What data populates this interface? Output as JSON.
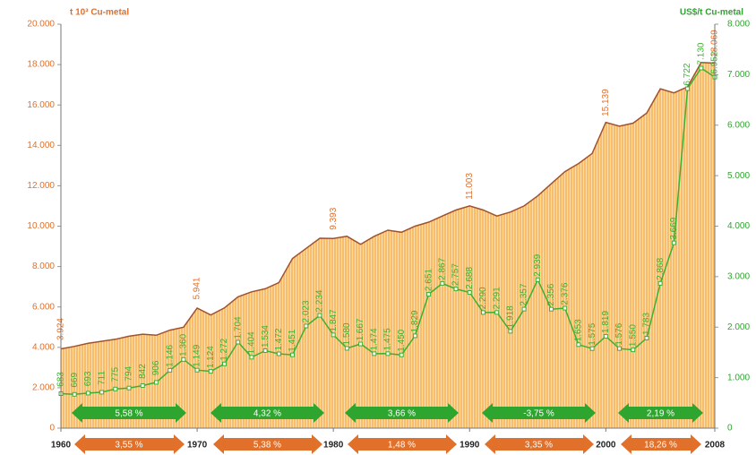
{
  "chart_data": {
    "type": "combo",
    "y_label": "t 10³ Cu-metal",
    "y2_label": "US$/t Cu-metal",
    "x": [
      1960,
      1961,
      1962,
      1963,
      1964,
      1965,
      1966,
      1967,
      1968,
      1969,
      1970,
      1971,
      1972,
      1973,
      1974,
      1975,
      1976,
      1977,
      1978,
      1979,
      1980,
      1981,
      1982,
      1983,
      1984,
      1985,
      1986,
      1987,
      1988,
      1989,
      1990,
      1991,
      1992,
      1993,
      1994,
      1995,
      1996,
      1997,
      1998,
      1999,
      2000,
      2001,
      2002,
      2003,
      2004,
      2005,
      2006,
      2007,
      2008
    ],
    "xlim": [
      1960,
      2008
    ],
    "xticks": [
      1960,
      1970,
      1980,
      1990,
      2000,
      2008
    ],
    "ylim": [
      0,
      20000
    ],
    "yticks": [
      0,
      {
        "value": 2000,
        "label": "2.000"
      },
      {
        "value": 4000,
        "label": "4.000"
      },
      {
        "value": 6000,
        "label": "6.000"
      },
      {
        "value": 8000,
        "label": "8.000"
      },
      {
        "value": 10000,
        "label": "10.000"
      },
      {
        "value": 12000,
        "label": "12.000"
      },
      {
        "value": 14000,
        "label": "14.000"
      },
      {
        "value": 16000,
        "label": "16.000"
      },
      {
        "value": 18000,
        "label": "18.000"
      },
      {
        "value": 20000,
        "label": "20.000"
      }
    ],
    "y2lim": [
      0,
      8000
    ],
    "y2ticks": [
      0,
      {
        "value": 1000,
        "label": "1.000"
      },
      {
        "value": 2000,
        "label": "2.000"
      },
      {
        "value": 3000,
        "label": "3.000"
      },
      {
        "value": 4000,
        "label": "4.000"
      },
      {
        "value": 5000,
        "label": "5.000"
      },
      {
        "value": 6000,
        "label": "6.000"
      },
      {
        "value": 7000,
        "label": "7.000"
      },
      {
        "value": 8000,
        "label": "8.000"
      }
    ],
    "series": [
      {
        "type": "area",
        "color": "#f7bd6a",
        "line_color": "#a0522d",
        "values": [
          3924,
          4050,
          4200,
          4300,
          4400,
          4550,
          4650,
          4600,
          4850,
          5000,
          5941,
          5600,
          5950,
          6500,
          6750,
          6900,
          7200,
          8400,
          8900,
          9400,
          9393,
          9500,
          9100,
          9500,
          9800,
          9700,
          10000,
          10200,
          10500,
          10800,
          11003,
          10800,
          10500,
          10700,
          11000,
          11500,
          12100,
          12700,
          13100,
          13600,
          15139,
          14950,
          15100,
          15600,
          16800,
          16600,
          16900,
          18100,
          18069
        ],
        "value_labels": [
          "3.924",
          null,
          null,
          null,
          null,
          null,
          null,
          null,
          null,
          null,
          "5.941",
          null,
          null,
          null,
          null,
          null,
          null,
          null,
          null,
          null,
          "9.393",
          null,
          null,
          null,
          null,
          null,
          null,
          null,
          null,
          null,
          "11.003",
          null,
          null,
          null,
          null,
          null,
          null,
          null,
          null,
          null,
          "15.139",
          null,
          null,
          null,
          null,
          null,
          null,
          null,
          "18.069"
        ]
      },
      {
        "type": "line",
        "axis": "y2",
        "color": "#3cb034",
        "values": [
          683,
          669,
          693,
          711,
          775,
          794,
          842,
          906,
          1146,
          1360,
          1149,
          1124,
          1272,
          1704,
          1404,
          1534,
          1472,
          1451,
          2023,
          2234,
          1847,
          1580,
          1667,
          1474,
          1475,
          1450,
          1829,
          2651,
          2867,
          2757,
          2688,
          2290,
          2291,
          1918,
          2357,
          2939,
          2356,
          2376,
          1653,
          1575,
          1819,
          1576,
          1550,
          1783,
          2868,
          3669,
          6722,
          7130,
          6952
        ],
        "value_labels": [
          "683",
          "669",
          "693",
          "711",
          "775",
          "794",
          "842",
          "906",
          "1.146",
          "1.360",
          "1.149",
          "1.124",
          "1.272",
          "1.704",
          "1.404",
          "1.534",
          "1.472",
          "1.451",
          "2.023",
          "2.234",
          "1.847",
          "1.580",
          "1.667",
          "1.474",
          "1.475",
          "1.450",
          "1.829",
          "2.651",
          "2.867",
          "2.757",
          "2.688",
          "2.290",
          "2.291",
          "1.918",
          "2.357",
          "2.939",
          "2.356",
          "2.376",
          "1.653",
          "1.575",
          "1.819",
          "1.576",
          "1.550",
          "1.783",
          "2.868",
          "3.669",
          "6.722",
          "7.130",
          "6.952"
        ]
      }
    ],
    "growth_price": [
      "5,58 %",
      "4,32 %",
      "3,66 %",
      "-3,75 %",
      "2,19 %"
    ],
    "growth_production": [
      "3,55 %",
      "5,38 %",
      "1,48 %",
      "3,35 %",
      "18,26 %"
    ]
  }
}
